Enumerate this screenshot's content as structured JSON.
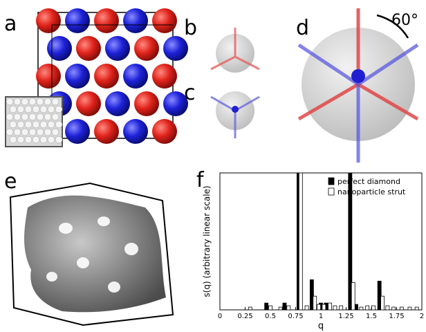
{
  "panels": [
    "a",
    "b",
    "c",
    "d",
    "e",
    "f"
  ],
  "annotation": "60°",
  "chart_data": {
    "type": "bar",
    "xlabel": "q",
    "ylabel": "s(q) (arbitrary linear scale)",
    "xlim": [
      0,
      2
    ],
    "xticks": [
      0,
      0.25,
      {
        "value": 0.5,
        "label": "0.5"
      },
      0.75,
      1,
      1.25,
      {
        "value": 1.5,
        "label": "1.5"
      },
      1.75,
      2
    ],
    "ylim": [
      0,
      10
    ],
    "legend": "upper right",
    "series": [
      {
        "name": "perfect diamond",
        "color": "#000000",
        "x": [
          0.46,
          0.64,
          0.78,
          0.91,
          1.0,
          1.05,
          1.29,
          1.35,
          1.58
        ],
        "values": [
          0.5,
          0.5,
          10,
          2.2,
          0.5,
          0.5,
          10,
          0.4,
          2.1
        ]
      },
      {
        "name": "nanoparticle strut",
        "color": "#ffffff",
        "x": [
          0.3,
          0.5,
          0.6,
          0.68,
          0.8,
          0.86,
          0.94,
          0.98,
          1.03,
          1.09,
          1.14,
          1.2,
          1.32,
          1.4,
          1.46,
          1.52,
          1.61,
          1.66,
          1.72,
          1.8,
          1.88,
          1.95
        ],
        "values": [
          0.2,
          0.3,
          0.2,
          0.3,
          10,
          0.3,
          1.0,
          0.4,
          0.4,
          0.5,
          0.3,
          0.3,
          2.0,
          0.2,
          0.3,
          0.3,
          1.0,
          0.3,
          0.2,
          0.2,
          0.2,
          0.2
        ]
      }
    ]
  }
}
